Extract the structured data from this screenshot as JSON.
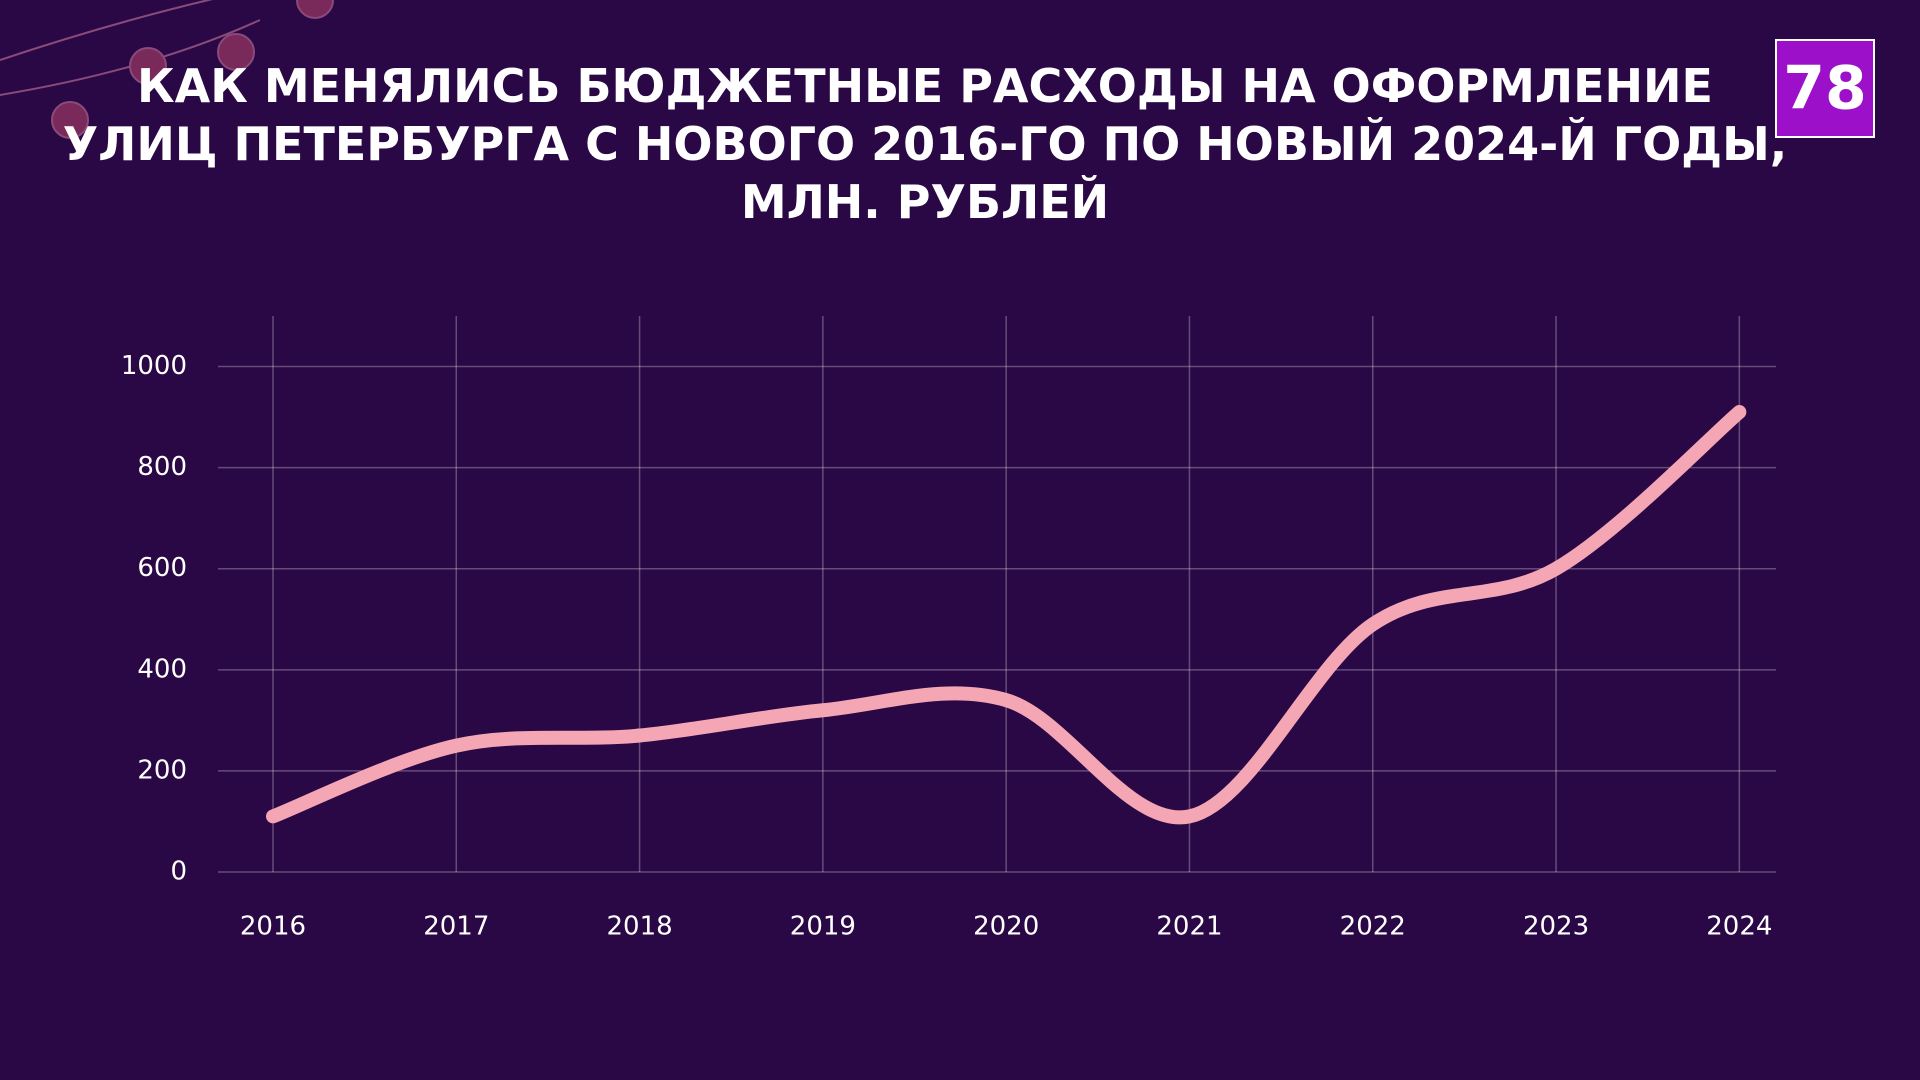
{
  "logo": "78",
  "chart_data": {
    "type": "line",
    "title": [
      "КАК МЕНЯЛИСЬ БЮДЖЕТНЫЕ РАСХОДЫ НА ОФОРМЛЕНИЕ",
      "УЛИЦ ПЕТЕРБУРГА С НОВОГО 2016-ГО ПО НОВЫЙ 2024-Й ГОДЫ,",
      "МЛН. РУБЛЕЙ"
    ],
    "x": [
      2016,
      2017,
      2018,
      2019,
      2020,
      2021,
      2022,
      2023,
      2024
    ],
    "series": [
      {
        "color": "#f4a6b5",
        "values": [
          110,
          250,
          270,
          320,
          340,
          110,
          490,
          600,
          910
        ]
      }
    ],
    "xlim": [
      2015.7,
      2024.2
    ],
    "xticks": [
      2016,
      2017,
      2018,
      2019,
      2020,
      2021,
      2022,
      2023,
      2024
    ],
    "ylim": [
      0,
      1100
    ],
    "yticks": [
      0,
      200,
      400,
      600,
      800,
      1000
    ],
    "grid": true
  }
}
